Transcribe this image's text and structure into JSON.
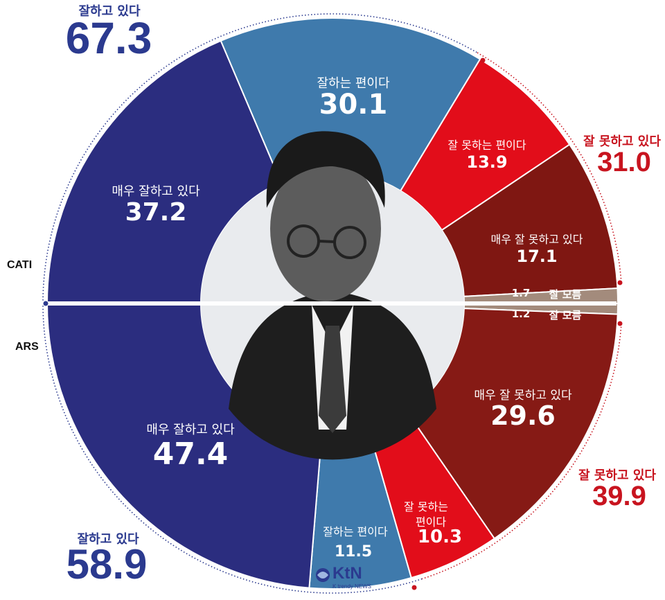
{
  "chart_data": {
    "type": "pie",
    "halves": [
      {
        "name": "CATI",
        "positive_total": {
          "label": "잘하고 있다",
          "value": 67.3
        },
        "negative_total": {
          "label": "잘 못하고 있다",
          "value": 31.0
        },
        "slices": [
          {
            "label": "매우 잘하고 있다",
            "value": 37.2,
            "color": "#2b2d7f"
          },
          {
            "label": "잘하는 편이다",
            "value": 30.1,
            "color": "#3f7aac"
          },
          {
            "label": "잘 못하는 편이다",
            "value": 13.9,
            "color": "#e20d1a"
          },
          {
            "label": "매우 잘 못하고 있다",
            "value": 17.1,
            "color": "#7f1712"
          },
          {
            "label": "잘 모름",
            "value": 1.7,
            "color": "#a38b7c"
          }
        ]
      },
      {
        "name": "ARS",
        "positive_total": {
          "label": "잘하고 있다",
          "value": 58.9
        },
        "negative_total": {
          "label": "잘 못하고 있다",
          "value": 39.9
        },
        "slices": [
          {
            "label": "잘 모름",
            "value": 1.2,
            "color": "#a38b7c"
          },
          {
            "label": "매우 잘 못하고 있다",
            "value": 29.6,
            "color": "#861a15"
          },
          {
            "label": "잘 못하는 편이다",
            "value": 10.3,
            "color": "#e20d1a"
          },
          {
            "label": "잘하는 편이다",
            "value": 11.5,
            "color": "#3f7aac"
          },
          {
            "label": "매우 잘하고 있다",
            "value": 47.4,
            "color": "#2b2d7f"
          }
        ]
      }
    ]
  },
  "labels": {
    "cati": "CATI",
    "ars": "ARS",
    "cati_pos_cap": "잘하고 있다",
    "cati_pos_val": "67.3",
    "cati_neg_cap": "잘 못하고 있다",
    "cati_neg_val": "31.0",
    "ars_pos_cap": "잘하고 있다",
    "ars_pos_val": "58.9",
    "ars_neg_cap": "잘 못하고 있다",
    "ars_neg_val": "39.9",
    "cati_s1_cap": "매우 잘하고 있다",
    "cati_s1_val": "37.2",
    "cati_s2_cap": "잘하는 편이다",
    "cati_s2_val": "30.1",
    "cati_s3_cap": "잘 못하는 편이다",
    "cati_s3_val": "13.9",
    "cati_s4_cap": "매우 잘 못하고 있다",
    "cati_s4_val": "17.1",
    "cati_s5_cap": "잘 모름",
    "cati_s5_val": "1.7",
    "ars_s5_cap": "잘 모름",
    "ars_s5_val": "1.2",
    "ars_s4_cap": "매우 잘 못하고 있다",
    "ars_s4_val": "29.6",
    "ars_s3_cap1": "잘 못하는",
    "ars_s3_cap2": "편이다",
    "ars_s3_val": "10.3",
    "ars_s2_cap": "잘하는 편이다",
    "ars_s2_val": "11.5",
    "ars_s1_cap": "매우 잘하고 있다",
    "ars_s1_val": "47.4",
    "logo_text": "KtN",
    "logo_sub": "K trendy NEWS"
  }
}
